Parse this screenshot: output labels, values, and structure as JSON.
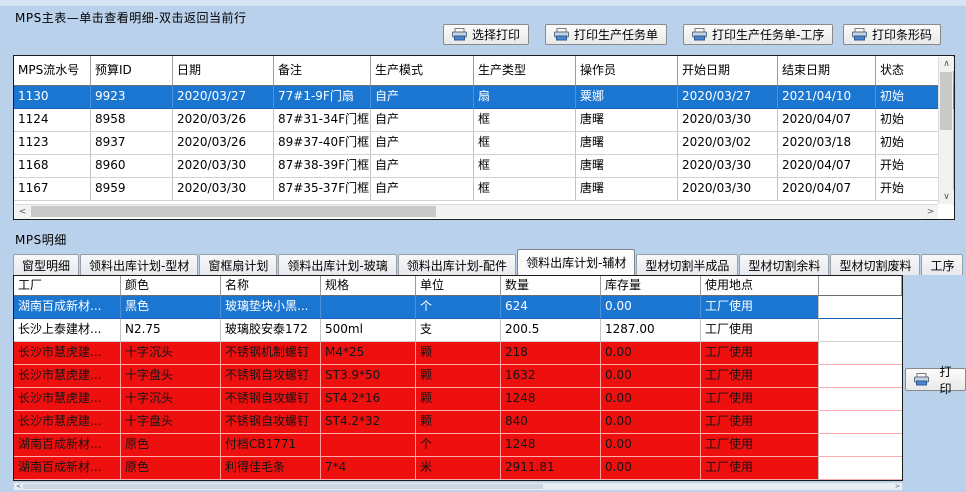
{
  "colors": {
    "window_bg": "#b9d1ea",
    "selected_row": "#1b76d2",
    "alert_row": "#ee0f0f"
  },
  "main_section": {
    "title": "MPS主表—单击查看明细-双击返回当前行",
    "buttons": [
      "选择打印",
      "打印生产任务单",
      "打印生产任务单-工序",
      "打印条形码"
    ],
    "table": {
      "columns": [
        "MPS流水号",
        "预算ID",
        "日期",
        "备注",
        "生产模式",
        "生产类型",
        "操作员",
        "开始日期",
        "结束日期",
        "状态"
      ],
      "selected_row_index": 0,
      "rows": [
        [
          "1130",
          "9923",
          "2020/03/27",
          "77#1-9F门扇",
          "自产",
          "扇",
          "粟娜",
          "2020/03/27",
          "2021/04/10",
          "初始"
        ],
        [
          "1124",
          "8958",
          "2020/03/26",
          "87#31-34F门框",
          "自产",
          "框",
          "唐曙",
          "2020/03/30",
          "2020/04/07",
          "初始"
        ],
        [
          "1123",
          "8937",
          "2020/03/26",
          "89#37-40F门框",
          "自产",
          "框",
          "唐曙",
          "2020/03/02",
          "2020/03/18",
          "初始"
        ],
        [
          "1168",
          "8960",
          "2020/03/30",
          "87#38-39F门框",
          "自产",
          "框",
          "唐曙",
          "2020/03/30",
          "2020/04/07",
          "开始"
        ],
        [
          "1167",
          "8959",
          "2020/03/30",
          "87#35-37F门框",
          "自产",
          "框",
          "唐曙",
          "2020/03/30",
          "2020/04/07",
          "开始"
        ]
      ]
    }
  },
  "detail_section": {
    "title": "MPS明细",
    "tabs": [
      "窗型明细",
      "领料出库计划-型材",
      "窗框扇计划",
      "领料出库计划-玻璃",
      "领料出库计划-配件",
      "领料出库计划-辅材",
      "型材切割半成品",
      "型材切割余料",
      "型材切割废料",
      "工序"
    ],
    "active_tab_index": 5,
    "print_button": "打印",
    "table": {
      "columns": [
        "工厂",
        "颜色",
        "名称",
        "规格",
        "单位",
        "数量",
        "库存量",
        "使用地点"
      ],
      "row_styles": [
        "selected",
        "normal",
        "alert",
        "alert",
        "alert",
        "alert",
        "alert",
        "alert"
      ],
      "rows": [
        [
          "湖南百成新材...",
          "黑色",
          "玻璃垫块小黑...",
          "",
          "个",
          "624",
          "0.00",
          "工厂使用"
        ],
        [
          "长沙上泰建材...",
          "N2.75",
          "玻璃胶安泰172",
          "500ml",
          "支",
          "200.5",
          "1287.00",
          "工厂使用"
        ],
        [
          "长沙市慧虎建...",
          "十字沉头",
          "不锈钢机制螺钉",
          "M4*25",
          "颗",
          "218",
          "0.00",
          "工厂使用"
        ],
        [
          "长沙市慧虎建...",
          "十字盘头",
          "不锈钢自攻螺钉",
          "ST3.9*50",
          "颗",
          "1632",
          "0.00",
          "工厂使用"
        ],
        [
          "长沙市慧虎建...",
          "十字沉头",
          "不锈钢自攻螺钉",
          "ST4.2*16",
          "颗",
          "1248",
          "0.00",
          "工厂使用"
        ],
        [
          "长沙市慧虎建...",
          "十字盘头",
          "不锈钢自攻螺钉",
          "ST4.2*32",
          "颗",
          "840",
          "0.00",
          "工厂使用"
        ],
        [
          "湖南百成新材...",
          "原色",
          "付档CB1771",
          "",
          "个",
          "1248",
          "0.00",
          "工厂使用"
        ],
        [
          "湖南百成新材...",
          "原色",
          "利得佳毛条",
          "7*4",
          "米",
          "2911.81",
          "0.00",
          "工厂使用"
        ]
      ]
    }
  }
}
